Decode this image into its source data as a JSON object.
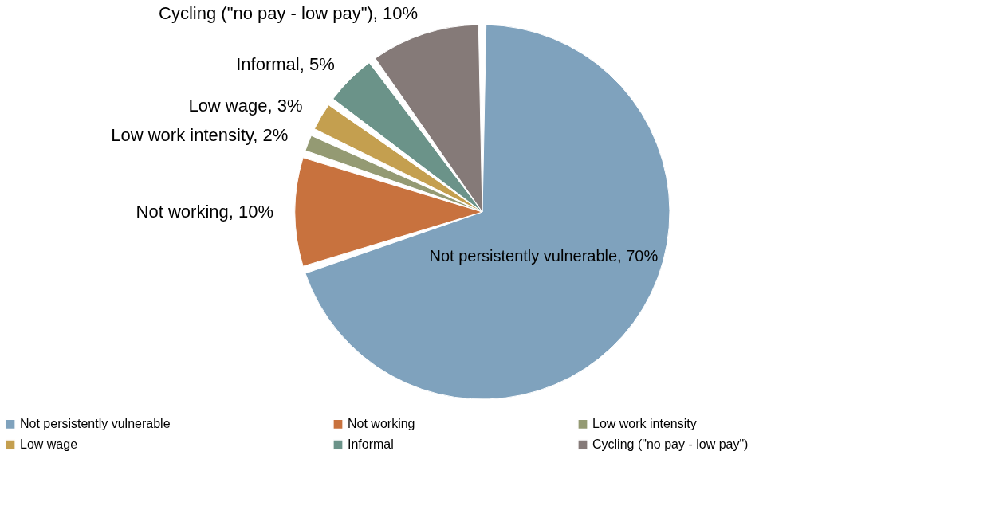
{
  "chart_data": {
    "type": "pie",
    "categories": [
      "Not persistently vulnerable",
      "Not working",
      "Low work intensity",
      "Low wage",
      "Informal",
      "Cycling (\"no pay - low pay\")"
    ],
    "values": [
      70,
      10,
      2,
      3,
      5,
      10
    ],
    "value_labels": [
      "Not persistently vulnerable, 70%",
      "Not working, 10%",
      "Low work intensity, 2%",
      "Low wage, 3%",
      "Informal, 5%",
      "Cycling (\"no pay - low pay\"), 10%"
    ],
    "colors": [
      "#7fa2bd",
      "#c8723e",
      "#949a73",
      "#c49f4f",
      "#6b9389",
      "#857a78"
    ],
    "legend": "bottom"
  }
}
